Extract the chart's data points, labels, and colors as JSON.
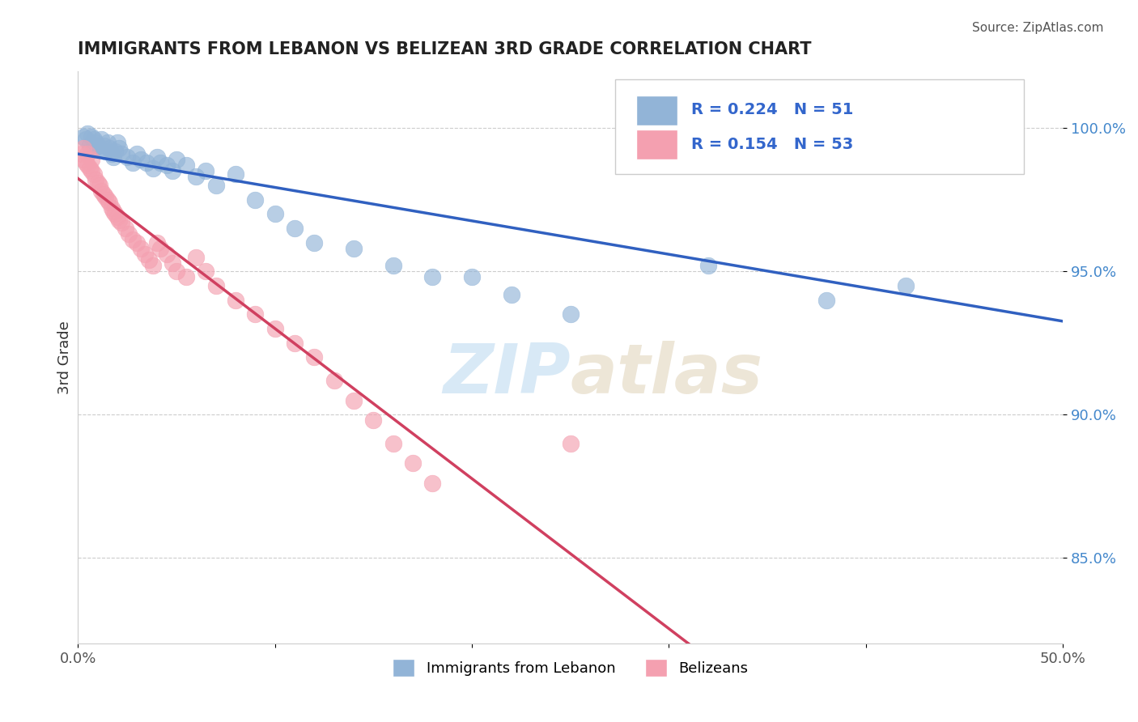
{
  "title": "IMMIGRANTS FROM LEBANON VS BELIZEAN 3RD GRADE CORRELATION CHART",
  "source": "Source: ZipAtlas.com",
  "ylabel": "3rd Grade",
  "xlim": [
    0.0,
    0.5
  ],
  "ylim": [
    0.82,
    1.02
  ],
  "xticks": [
    0.0,
    0.1,
    0.2,
    0.3,
    0.4,
    0.5
  ],
  "xticklabels": [
    "0.0%",
    "",
    "",
    "",
    "",
    "50.0%"
  ],
  "yticks": [
    0.85,
    0.9,
    0.95,
    1.0
  ],
  "yticklabels": [
    "85.0%",
    "90.0%",
    "95.0%",
    "100.0%"
  ],
  "legend_label1": "Immigrants from Lebanon",
  "legend_label2": "Belizeans",
  "R1": 0.224,
  "N1": 51,
  "R2": 0.154,
  "N2": 53,
  "color_blue": "#92b4d7",
  "color_pink": "#f4a0b0",
  "line_blue": "#3060c0",
  "line_pink": "#d04060",
  "watermark_zip": "ZIP",
  "watermark_atlas": "atlas",
  "blue_points_x": [
    0.005,
    0.007,
    0.008,
    0.009,
    0.01,
    0.011,
    0.012,
    0.013,
    0.014,
    0.015,
    0.016,
    0.017,
    0.018,
    0.019,
    0.02,
    0.021,
    0.022,
    0.025,
    0.028,
    0.03,
    0.032,
    0.035,
    0.038,
    0.04,
    0.042,
    0.045,
    0.048,
    0.05,
    0.055,
    0.06,
    0.065,
    0.07,
    0.08,
    0.09,
    0.1,
    0.11,
    0.12,
    0.14,
    0.16,
    0.18,
    0.2,
    0.22,
    0.25,
    0.003,
    0.004,
    0.006,
    0.008,
    0.32,
    0.38,
    0.42,
    0.47
  ],
  "blue_points_y": [
    0.998,
    0.997,
    0.996,
    0.995,
    0.994,
    0.993,
    0.996,
    0.994,
    0.992,
    0.995,
    0.993,
    0.991,
    0.99,
    0.992,
    0.995,
    0.993,
    0.991,
    0.99,
    0.988,
    0.991,
    0.989,
    0.988,
    0.986,
    0.99,
    0.988,
    0.987,
    0.985,
    0.989,
    0.987,
    0.983,
    0.985,
    0.98,
    0.984,
    0.975,
    0.97,
    0.965,
    0.96,
    0.958,
    0.952,
    0.948,
    0.948,
    0.942,
    0.935,
    0.997,
    0.996,
    0.994,
    0.993,
    0.952,
    0.94,
    0.945,
    1.0
  ],
  "pink_points_x": [
    0.002,
    0.003,
    0.004,
    0.005,
    0.006,
    0.007,
    0.008,
    0.009,
    0.01,
    0.011,
    0.012,
    0.013,
    0.014,
    0.015,
    0.016,
    0.017,
    0.018,
    0.019,
    0.02,
    0.021,
    0.022,
    0.024,
    0.026,
    0.028,
    0.03,
    0.032,
    0.034,
    0.036,
    0.038,
    0.04,
    0.042,
    0.045,
    0.048,
    0.05,
    0.055,
    0.06,
    0.065,
    0.07,
    0.08,
    0.09,
    0.1,
    0.11,
    0.12,
    0.13,
    0.14,
    0.15,
    0.16,
    0.17,
    0.18,
    0.003,
    0.005,
    0.007,
    0.25
  ],
  "pink_points_y": [
    0.991,
    0.989,
    0.988,
    0.987,
    0.986,
    0.985,
    0.984,
    0.982,
    0.981,
    0.98,
    0.978,
    0.977,
    0.976,
    0.975,
    0.974,
    0.972,
    0.971,
    0.97,
    0.969,
    0.968,
    0.967,
    0.965,
    0.963,
    0.961,
    0.96,
    0.958,
    0.956,
    0.954,
    0.952,
    0.96,
    0.958,
    0.956,
    0.953,
    0.95,
    0.948,
    0.955,
    0.95,
    0.945,
    0.94,
    0.935,
    0.93,
    0.925,
    0.92,
    0.912,
    0.905,
    0.898,
    0.89,
    0.883,
    0.876,
    0.993,
    0.991,
    0.989,
    0.89
  ]
}
